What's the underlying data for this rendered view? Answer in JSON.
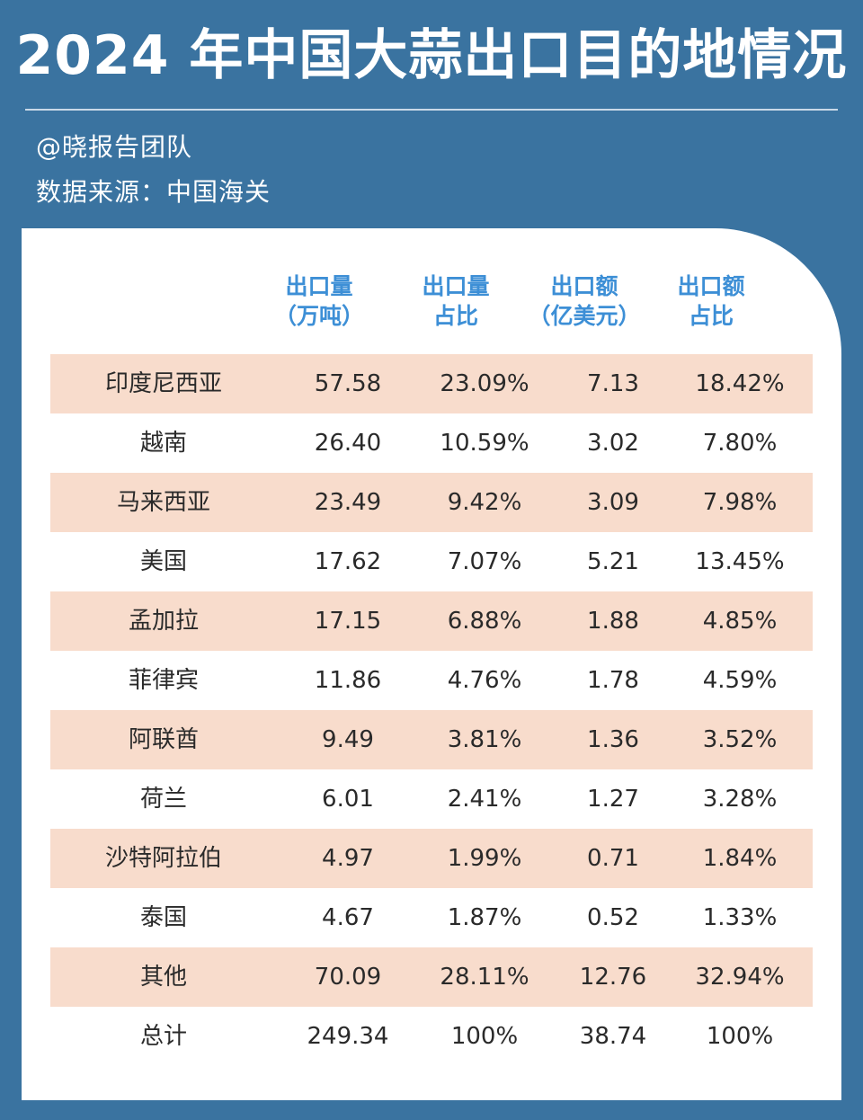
{
  "title": "2024 年中国大蒜出口目的地情况",
  "author": "@晓报告团队",
  "source": "数据来源：中国海关",
  "colors": {
    "background": "#3a73a0",
    "header_text": "#3d8fd6",
    "row_shade": "#f8dccc",
    "card": "#ffffff"
  },
  "chart_data": {
    "type": "table",
    "title": "2024 年中国大蒜出口目的地情况",
    "columns": [
      {
        "line1": "出口量",
        "line2": "（万吨）"
      },
      {
        "line1": "出口量",
        "line2": "占比"
      },
      {
        "line1": "出口额",
        "line2": "（亿美元）"
      },
      {
        "line1": "出口额",
        "line2": "占比"
      }
    ],
    "rows": [
      {
        "country": "印度尼西亚",
        "volume": "57.58",
        "volume_share": "23.09%",
        "value": "7.13",
        "value_share": "18.42%"
      },
      {
        "country": "越南",
        "volume": "26.40",
        "volume_share": "10.59%",
        "value": "3.02",
        "value_share": "7.80%"
      },
      {
        "country": "马来西亚",
        "volume": "23.49",
        "volume_share": "9.42%",
        "value": "3.09",
        "value_share": "7.98%"
      },
      {
        "country": "美国",
        "volume": "17.62",
        "volume_share": "7.07%",
        "value": "5.21",
        "value_share": "13.45%"
      },
      {
        "country": "孟加拉",
        "volume": "17.15",
        "volume_share": "6.88%",
        "value": "1.88",
        "value_share": "4.85%"
      },
      {
        "country": "菲律宾",
        "volume": "11.86",
        "volume_share": "4.76%",
        "value": "1.78",
        "value_share": "4.59%"
      },
      {
        "country": "阿联酋",
        "volume": "9.49",
        "volume_share": "3.81%",
        "value": "1.36",
        "value_share": "3.52%"
      },
      {
        "country": "荷兰",
        "volume": "6.01",
        "volume_share": "2.41%",
        "value": "1.27",
        "value_share": "3.28%"
      },
      {
        "country": "沙特阿拉伯",
        "volume": "4.97",
        "volume_share": "1.99%",
        "value": "0.71",
        "value_share": "1.84%"
      },
      {
        "country": "泰国",
        "volume": "4.67",
        "volume_share": "1.87%",
        "value": "0.52",
        "value_share": "1.33%"
      },
      {
        "country": "其他",
        "volume": "70.09",
        "volume_share": "28.11%",
        "value": "12.76",
        "value_share": "32.94%"
      },
      {
        "country": "总计",
        "volume": "249.34",
        "volume_share": "100%",
        "value": "38.74",
        "value_share": "100%"
      }
    ]
  }
}
